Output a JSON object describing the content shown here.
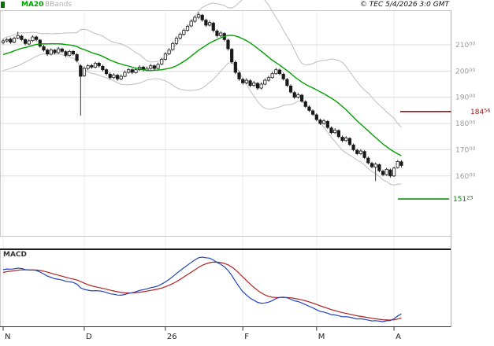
{
  "header": {
    "copyright": "© TEC 5/4/2026 3:0 GMT"
  },
  "colors": {
    "ma20": "#00a000",
    "bbands": "#c3c3c3",
    "candle": "#1a1a1a",
    "candle_up_fill": "#ffffff",
    "macd_line": "#2244bb",
    "macd_signal": "#b22222",
    "grid": "#dcdcdc",
    "grid_vertical": "#ececec",
    "panel_border": "#c8c8c8",
    "separator": "#1a1a1a",
    "axis_text": "#9a9a9a",
    "month_text": "#222222",
    "resistance": "#aa1111",
    "support": "#008800"
  },
  "chart_data": {
    "type": "candlestick",
    "title": "",
    "xlabel": "",
    "ylabel": "",
    "grid": "horizontal",
    "legend_position": "top-left",
    "price_axis": {
      "side": "right",
      "range": [
        137,
        223
      ],
      "tick_labels": [
        {
          "main": "210",
          "sup": "00",
          "value": 210
        },
        {
          "main": "200",
          "sup": "00",
          "value": 200
        },
        {
          "main": "190",
          "sup": "00",
          "value": 190
        },
        {
          "main": "180",
          "sup": "00",
          "value": 180
        },
        {
          "main": "170",
          "sup": "00",
          "value": 170
        },
        {
          "main": "160",
          "sup": "00",
          "value": 160
        }
      ]
    },
    "x_axis": {
      "tick_labels": [
        {
          "label": "N",
          "day": 0
        },
        {
          "label": "D",
          "day": 22
        },
        {
          "label": "26",
          "day": 44
        },
        {
          "label": "F",
          "day": 65
        },
        {
          "label": "M",
          "day": 85
        },
        {
          "label": "A",
          "day": 106
        }
      ]
    },
    "levels": [
      {
        "name": "resistance",
        "main": "184",
        "sup": "56",
        "value": 184.56,
        "color": "#aa1111"
      },
      {
        "name": "support",
        "main": "151",
        "sup": "23",
        "value": 151.23,
        "color": "#008800"
      }
    ],
    "indicators": {
      "ma": {
        "label": "MA20",
        "period": 20
      },
      "bbands": {
        "label": "BBands",
        "period": 20,
        "stddev": 2
      },
      "macd": {
        "label": "MACD",
        "fast": 12,
        "slow": 26,
        "signal": 9
      }
    },
    "prehistory_closes": [
      201.5,
      202.0,
      202.8,
      202.2,
      203.0,
      203.0,
      203.8,
      204.5,
      204.2,
      205.0,
      205.8,
      206.5,
      207.2,
      206.8,
      207.8,
      208.5,
      209.2,
      209.8,
      210.5,
      211.0
    ],
    "candles": [
      [
        210.8,
        212.2,
        210.2,
        211.5
      ],
      [
        211.5,
        212.6,
        210.9,
        212.0
      ],
      [
        212.2,
        212.8,
        210.4,
        211.0
      ],
      [
        211.0,
        213.1,
        210.6,
        212.5
      ],
      [
        212.6,
        215.0,
        212.2,
        213.5
      ],
      [
        213.3,
        213.9,
        211.4,
        212.0
      ],
      [
        212.0,
        212.5,
        209.8,
        210.5
      ],
      [
        210.3,
        212.2,
        209.9,
        211.5
      ],
      [
        211.6,
        213.6,
        211.1,
        213.0
      ],
      [
        213.0,
        213.5,
        211.3,
        212.0
      ],
      [
        211.8,
        212.2,
        208.9,
        209.5
      ],
      [
        209.3,
        210.0,
        207.4,
        208.0
      ],
      [
        208.0,
        208.6,
        205.8,
        206.5
      ],
      [
        206.4,
        208.7,
        206.0,
        208.0
      ],
      [
        208.0,
        208.4,
        206.3,
        207.0
      ],
      [
        207.0,
        209.2,
        206.6,
        208.5
      ],
      [
        208.4,
        208.9,
        206.9,
        207.5
      ],
      [
        207.4,
        207.9,
        205.3,
        206.0
      ],
      [
        206.0,
        208.1,
        205.6,
        207.5
      ],
      [
        207.5,
        208.0,
        205.9,
        206.5
      ],
      [
        206.3,
        206.8,
        203.3,
        204.0
      ],
      [
        202.0,
        202.6,
        183.0,
        198.0
      ],
      [
        198.2,
        201.7,
        197.8,
        201.0
      ],
      [
        201.0,
        202.6,
        200.3,
        202.0
      ],
      [
        202.1,
        202.7,
        200.8,
        201.5
      ],
      [
        201.5,
        203.6,
        201.0,
        203.0
      ],
      [
        203.0,
        203.5,
        201.3,
        202.0
      ],
      [
        201.8,
        202.4,
        199.8,
        200.5
      ],
      [
        200.5,
        201.0,
        198.3,
        199.0
      ],
      [
        198.8,
        199.5,
        196.8,
        197.5
      ],
      [
        197.5,
        199.2,
        197.0,
        198.5
      ],
      [
        198.4,
        198.9,
        196.3,
        197.0
      ],
      [
        197.0,
        198.7,
        196.5,
        198.0
      ],
      [
        198.0,
        200.2,
        197.6,
        199.5
      ],
      [
        199.5,
        201.1,
        199.0,
        200.5
      ],
      [
        200.5,
        201.0,
        198.8,
        199.5
      ],
      [
        199.4,
        201.2,
        199.0,
        200.5
      ],
      [
        200.5,
        202.2,
        200.1,
        201.5
      ],
      [
        201.5,
        202.0,
        199.8,
        200.5
      ],
      [
        200.4,
        201.7,
        199.9,
        201.0
      ],
      [
        201.0,
        202.7,
        200.5,
        202.0
      ],
      [
        202.0,
        202.5,
        200.3,
        201.0
      ],
      [
        201.0,
        203.2,
        200.6,
        202.5
      ],
      [
        202.7,
        205.1,
        202.2,
        204.5
      ],
      [
        204.5,
        207.2,
        204.0,
        206.5
      ],
      [
        206.6,
        208.7,
        206.1,
        208.0
      ],
      [
        208.2,
        211.2,
        207.8,
        210.5
      ],
      [
        210.5,
        213.2,
        210.0,
        212.5
      ],
      [
        212.6,
        214.7,
        212.1,
        214.0
      ],
      [
        214.0,
        216.2,
        213.5,
        215.5
      ],
      [
        215.5,
        217.7,
        215.0,
        217.0
      ],
      [
        217.2,
        219.7,
        216.7,
        219.0
      ],
      [
        219.0,
        221.2,
        218.4,
        220.5
      ],
      [
        220.5,
        222.5,
        219.8,
        221.5
      ],
      [
        221.3,
        221.8,
        218.8,
        219.5
      ],
      [
        219.4,
        220.0,
        216.8,
        217.5
      ],
      [
        217.5,
        219.3,
        217.0,
        218.5
      ],
      [
        218.3,
        218.8,
        214.8,
        215.5
      ],
      [
        215.3,
        215.9,
        212.8,
        213.5
      ],
      [
        213.5,
        215.2,
        213.0,
        214.5
      ],
      [
        214.3,
        214.8,
        211.3,
        212.0
      ],
      [
        211.8,
        212.3,
        207.8,
        208.5
      ],
      [
        208.3,
        208.8,
        202.8,
        203.5
      ],
      [
        203.3,
        204.0,
        198.8,
        199.5
      ],
      [
        199.3,
        199.9,
        196.3,
        197.0
      ],
      [
        196.8,
        197.4,
        194.8,
        195.5
      ],
      [
        195.5,
        197.3,
        195.0,
        196.5
      ],
      [
        196.3,
        196.9,
        193.8,
        194.5
      ],
      [
        194.5,
        196.2,
        194.0,
        195.5
      ],
      [
        195.3,
        195.8,
        192.8,
        193.5
      ],
      [
        193.5,
        195.7,
        193.0,
        195.0
      ],
      [
        195.0,
        197.2,
        194.6,
        196.5
      ],
      [
        196.5,
        198.2,
        196.0,
        197.5
      ],
      [
        197.5,
        199.7,
        197.1,
        199.0
      ],
      [
        199.0,
        201.2,
        198.6,
        200.5
      ],
      [
        200.4,
        200.9,
        198.4,
        199.0
      ],
      [
        198.8,
        199.4,
        196.4,
        197.0
      ],
      [
        196.8,
        197.4,
        193.9,
        194.5
      ],
      [
        194.3,
        194.9,
        191.4,
        192.0
      ],
      [
        191.8,
        192.4,
        189.4,
        190.0
      ],
      [
        190.0,
        191.7,
        189.5,
        191.0
      ],
      [
        190.8,
        191.3,
        187.9,
        188.5
      ],
      [
        188.3,
        188.9,
        185.9,
        186.5
      ],
      [
        186.3,
        186.9,
        184.4,
        185.0
      ],
      [
        184.8,
        185.4,
        182.9,
        183.5
      ],
      [
        183.3,
        183.9,
        180.9,
        181.5
      ],
      [
        181.3,
        181.9,
        179.4,
        180.0
      ],
      [
        180.0,
        181.7,
        179.5,
        181.0
      ],
      [
        180.8,
        181.3,
        177.9,
        178.5
      ],
      [
        178.3,
        178.9,
        175.9,
        176.5
      ],
      [
        176.5,
        178.2,
        176.0,
        177.5
      ],
      [
        177.3,
        177.8,
        174.4,
        175.0
      ],
      [
        174.8,
        175.4,
        172.9,
        173.5
      ],
      [
        173.5,
        175.2,
        173.0,
        174.5
      ],
      [
        174.3,
        174.8,
        171.4,
        172.0
      ],
      [
        171.8,
        172.4,
        169.4,
        170.0
      ],
      [
        169.8,
        170.4,
        167.9,
        168.5
      ],
      [
        168.5,
        170.2,
        168.0,
        169.5
      ],
      [
        169.3,
        169.8,
        166.4,
        167.0
      ],
      [
        166.8,
        167.4,
        164.4,
        165.0
      ],
      [
        164.8,
        165.4,
        162.9,
        163.5
      ],
      [
        163.4,
        165.1,
        158.0,
        164.5
      ],
      [
        164.3,
        164.8,
        161.4,
        162.0
      ],
      [
        161.8,
        162.4,
        159.9,
        160.5
      ],
      [
        160.5,
        163.1,
        160.0,
        162.5
      ],
      [
        162.3,
        162.8,
        159.4,
        160.0
      ],
      [
        160.0,
        163.6,
        159.6,
        163.0
      ],
      [
        163.2,
        166.1,
        162.8,
        165.5
      ],
      [
        165.4,
        166.0,
        163.2,
        164.0
      ]
    ]
  }
}
